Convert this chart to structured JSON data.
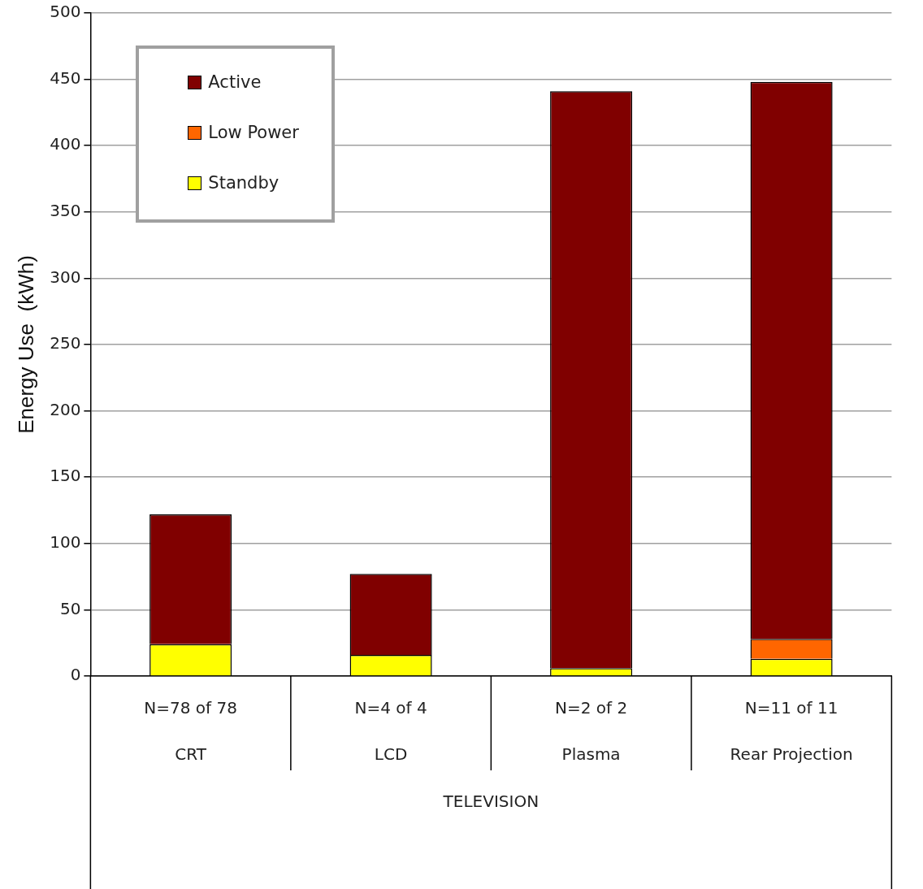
{
  "chart_data": {
    "type": "bar",
    "stacked": true,
    "ylabel": "Energy Use  (kWh)",
    "categories": [
      "CRT",
      "LCD",
      "Plasma",
      "Rear Projection"
    ],
    "series": [
      {
        "name": "Standby",
        "color": "#ffff00",
        "values": [
          24,
          16,
          6,
          13
        ]
      },
      {
        "name": "Low Power",
        "color": "#ff6600",
        "values": [
          0,
          0,
          0,
          15
        ]
      },
      {
        "name": "Active",
        "color": "#800000",
        "values": [
          98,
          61,
          435,
          420
        ]
      }
    ],
    "annotations": [
      "N=78 of 78",
      "N=4 of 4",
      "N=2 of 2",
      "N=11 of 11",
      "TELEVISION"
    ],
    "ylim": [
      0,
      500
    ],
    "yticks": [
      0,
      50,
      100,
      150,
      200,
      250,
      300,
      350,
      400,
      450,
      500
    ],
    "grid": "y",
    "legend": "top left"
  }
}
